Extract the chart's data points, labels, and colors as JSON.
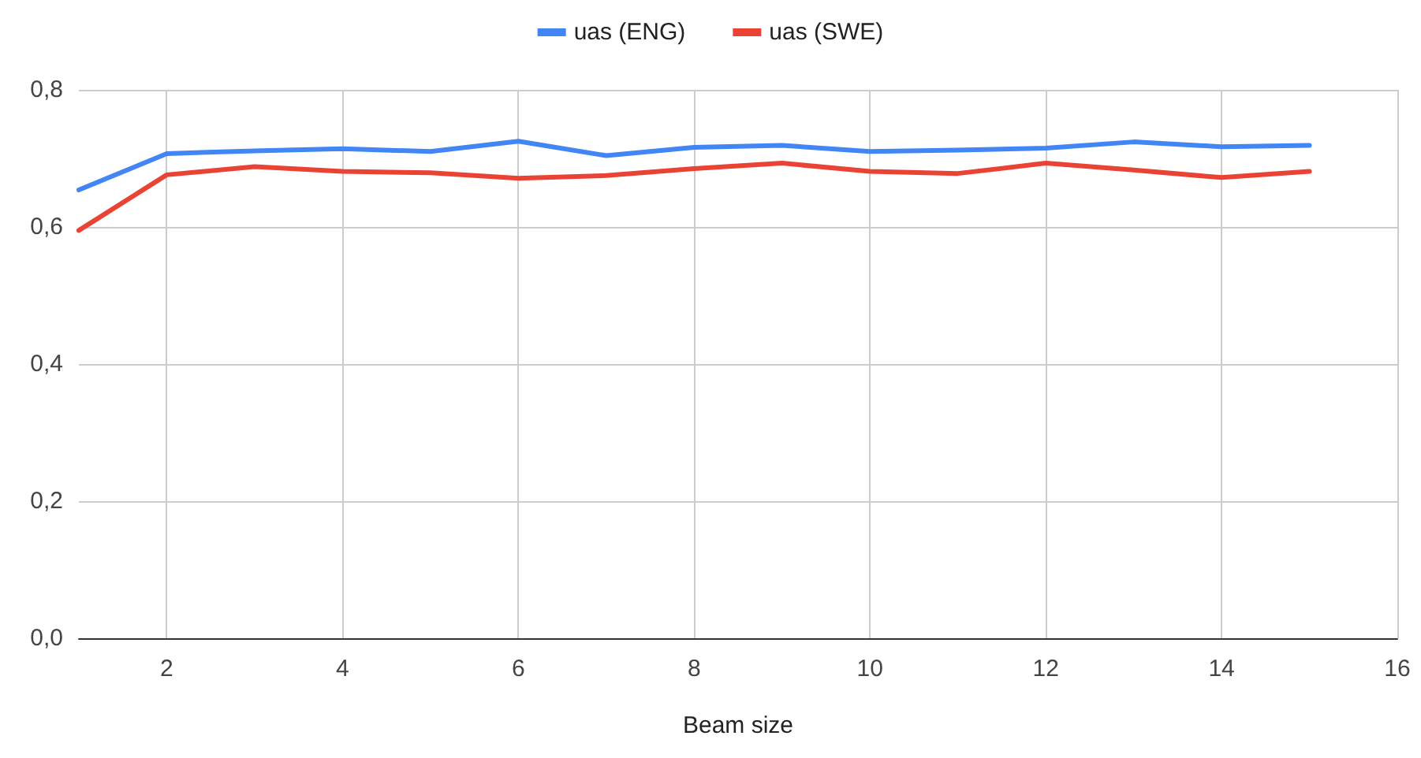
{
  "chart_data": {
    "type": "line",
    "xlabel": "Beam size",
    "x": [
      1,
      2,
      3,
      4,
      5,
      6,
      7,
      8,
      9,
      10,
      11,
      12,
      13,
      14,
      15
    ],
    "series": [
      {
        "name": "uas (ENG)",
        "color": "#4285f4",
        "values": [
          0.654,
          0.707,
          0.711,
          0.714,
          0.71,
          0.725,
          0.704,
          0.716,
          0.719,
          0.71,
          0.712,
          0.715,
          0.724,
          0.717,
          0.719
        ]
      },
      {
        "name": "uas (SWE)",
        "color": "#ea4335",
        "values": [
          0.595,
          0.676,
          0.688,
          0.681,
          0.679,
          0.671,
          0.675,
          0.685,
          0.693,
          0.681,
          0.678,
          0.693,
          0.683,
          0.672,
          0.681
        ]
      }
    ],
    "xlim": [
      1,
      16
    ],
    "xticks": [
      2,
      4,
      6,
      8,
      10,
      12,
      14,
      16
    ],
    "ylim": [
      0,
      0.8
    ],
    "yticks": [
      {
        "value": 0,
        "label": "0,0"
      },
      {
        "value": 0.2,
        "label": "0,2"
      },
      {
        "value": 0.4,
        "label": "0,4"
      },
      {
        "value": 0.6,
        "label": "0,6"
      },
      {
        "value": 0.8,
        "label": "0,8"
      }
    ],
    "grid": true,
    "legend": "top",
    "marker": "none",
    "line_style": "solid"
  }
}
